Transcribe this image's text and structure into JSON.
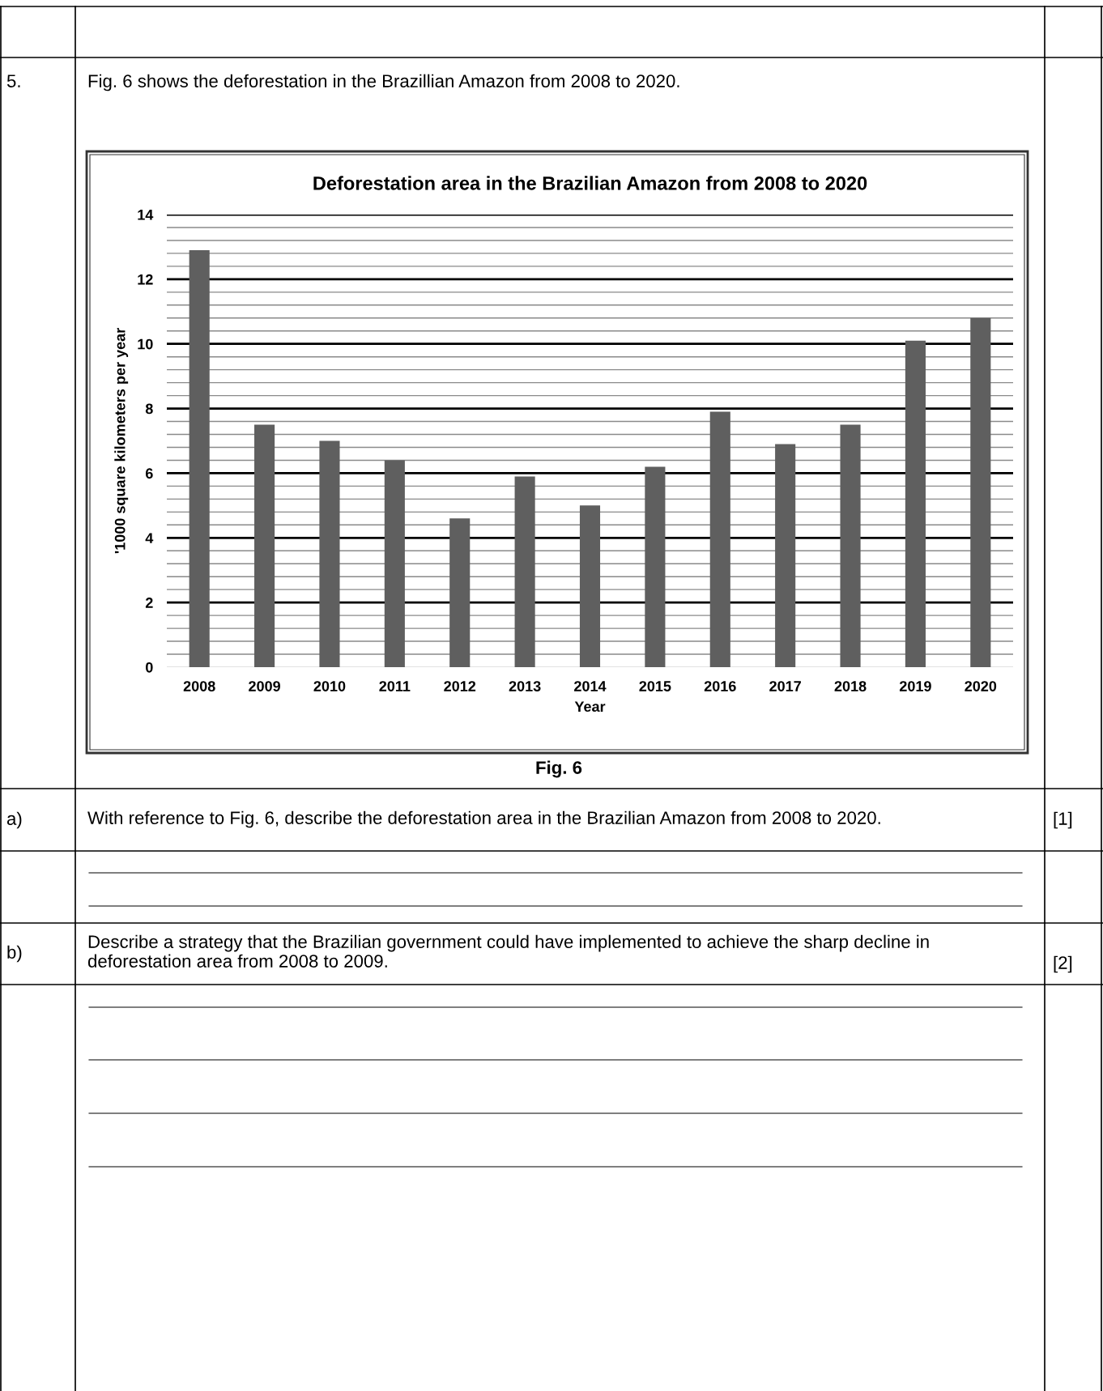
{
  "chart_data": {
    "type": "bar",
    "title": "Deforestation area in the Brazilian Amazon from 2008 to 2020",
    "xlabel": "Year",
    "ylabel": "'1000 square kilometers per year",
    "categories": [
      "2008",
      "2009",
      "2010",
      "2011",
      "2012",
      "2013",
      "2014",
      "2015",
      "2016",
      "2017",
      "2018",
      "2019",
      "2020"
    ],
    "values": [
      12.9,
      7.5,
      7.0,
      6.4,
      4.6,
      5.9,
      5.0,
      6.2,
      7.9,
      6.9,
      7.5,
      10.1,
      10.8
    ],
    "color": "#5f5f5f",
    "ylim": [
      0,
      14
    ],
    "yticks": [
      0,
      {
        "value": 0.4,
        "label": null
      },
      {
        "value": 0.8,
        "label": null
      },
      {
        "value": 1.2,
        "label": null
      },
      {
        "value": 1.6,
        "label": null
      },
      2,
      {
        "value": 2.4,
        "label": null
      },
      {
        "value": 2.8,
        "label": null
      },
      {
        "value": 3.2,
        "label": null
      },
      {
        "value": 3.6,
        "label": null
      },
      4,
      {
        "value": 4.4,
        "label": null
      },
      {
        "value": 4.8,
        "label": null
      },
      {
        "value": 5.2,
        "label": null
      },
      {
        "value": 5.6,
        "label": null
      },
      6,
      {
        "value": 6.4,
        "label": null
      },
      {
        "value": 6.8,
        "label": null
      },
      {
        "value": 7.2,
        "label": null
      },
      {
        "value": 7.6,
        "label": null
      },
      8,
      {
        "value": 8.4,
        "label": null
      },
      {
        "value": 8.8,
        "label": null
      },
      {
        "value": 9.2,
        "label": null
      },
      {
        "value": 9.6,
        "label": null
      },
      10,
      {
        "value": 10.4,
        "label": null
      },
      {
        "value": 10.8,
        "label": null
      },
      {
        "value": 11.2,
        "label": null
      },
      {
        "value": 11.6,
        "label": null
      },
      12,
      {
        "value": 12.4,
        "label": null
      },
      {
        "value": 12.8,
        "label": null
      },
      {
        "value": 13.2,
        "label": null
      },
      {
        "value": 13.6,
        "label": null
      },
      14
    ],
    "grid": "y",
    "annotations": [
      "5.",
      "Fig. 6 shows the deforestation in the Brazillian Amazon from 2008 to 2020.",
      "Fig. 6",
      "a)",
      "With reference to Fig. 6, describe the deforestation area in the Brazilian Amazon from 2008 to 2020.",
      "[1]",
      "b)",
      "Describe a strategy that the Brazilian government could have implemented to achieve the sharp decline in deforestation area from 2008 to 2009.",
      "[2]"
    ]
  }
}
